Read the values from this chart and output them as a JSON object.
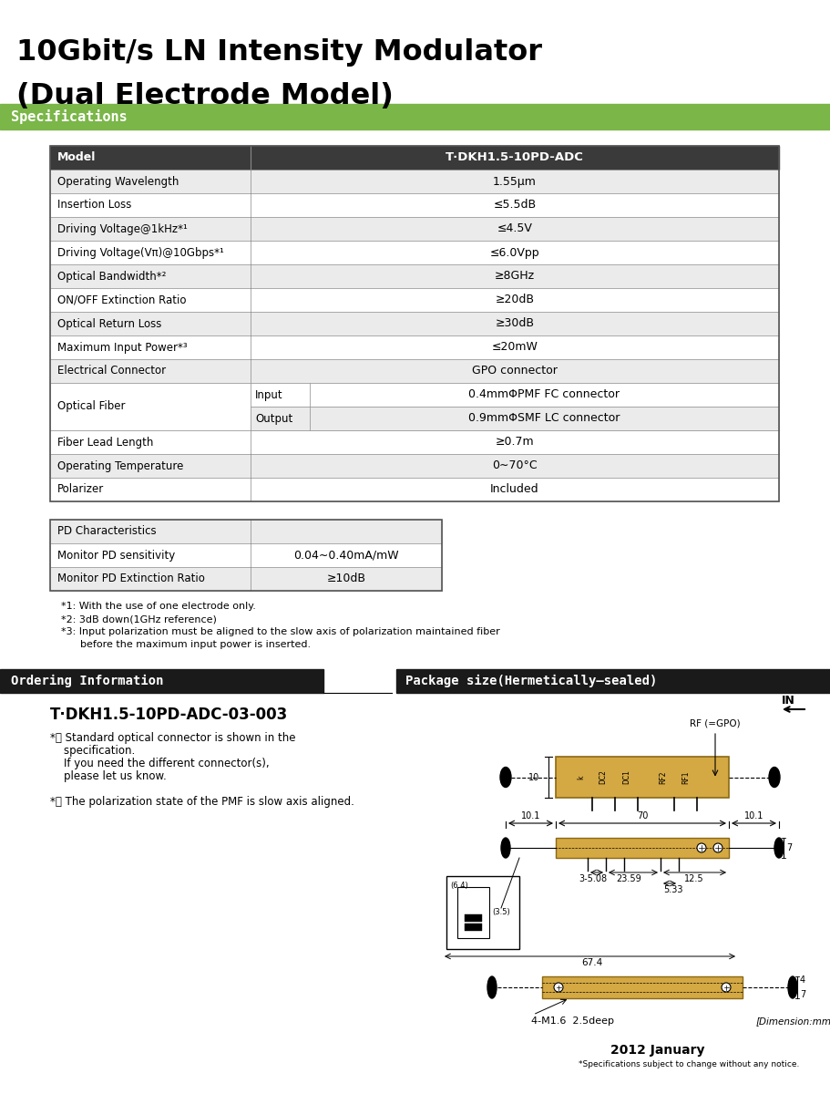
{
  "title_line1": "10Gbit/s LN Intensity Modulator",
  "title_line2": "(Dual Electrode Model)",
  "section1_label": "Specifications",
  "section2_label": "Ordering Information",
  "section3_label": "Package size(Hermetically–sealed)",
  "model_header": "Model",
  "model_value": "T·DKH1.5-10PD-ADC",
  "spec_rows": [
    [
      "Operating Wavelength",
      "1.55μm"
    ],
    [
      "Insertion Loss",
      "≤5.5dB"
    ],
    [
      "Driving Voltage@1kHz*¹",
      "≤4.5V"
    ],
    [
      "Driving Voltage(Vπ)@10Gbps*¹",
      "≤6.0Vpp"
    ],
    [
      "Optical Bandwidth*²",
      "≥8GHz"
    ],
    [
      "ON/OFF Extinction Ratio",
      "≥20dB"
    ],
    [
      "Optical Return Loss",
      "≥30dB"
    ],
    [
      "Maximum Input Power*³",
      "≤20mW"
    ],
    [
      "Electrical Connector",
      "GPO connector"
    ],
    [
      "Optical Fiber|Input",
      "0.4mmΦPMF FC connector"
    ],
    [
      "Optical Fiber|Output",
      "0.9mmΦSMF LC connector"
    ],
    [
      "Fiber Lead Length",
      "≥0.7m"
    ],
    [
      "Operating Temperature",
      "0∼70°C"
    ],
    [
      "Polarizer",
      "Included"
    ]
  ],
  "pd_rows": [
    [
      "PD Characteristics",
      ""
    ],
    [
      "Monitor PD sensitivity",
      "0.04∼0.40mA/mW"
    ],
    [
      "Monitor PD Extinction Ratio",
      "≥10dB"
    ]
  ],
  "footnotes": [
    "*1: With the use of one electrode only.",
    "*2: 3dB down(1GHz reference)",
    "*3: Input polarization must be aligned to the slow axis of polarization maintained fiber",
    "      before the maximum input power is inserted."
  ],
  "ordering_model": "T·DKH1.5-10PD-ADC-03-003",
  "ordering_notes": [
    "*： Standard optical connector is shown in the",
    "    specification.",
    "    If you need the different connector(s),",
    "    please let us know.",
    "",
    "*： The polarization state of the PMF is slow axis aligned."
  ],
  "footer_year": "2012 January",
  "footer_note": "*Specifications subject to change without any notice.",
  "dim_note": "[Dimension:mm]",
  "green_color": "#7ab648",
  "header_bg": "#3a3a3a",
  "row_alt": "#ebebeb",
  "row_white": "#ffffff",
  "table_border": "#888888",
  "ordering_bg": "#1a1a1a",
  "gold_color": "#d4a843"
}
